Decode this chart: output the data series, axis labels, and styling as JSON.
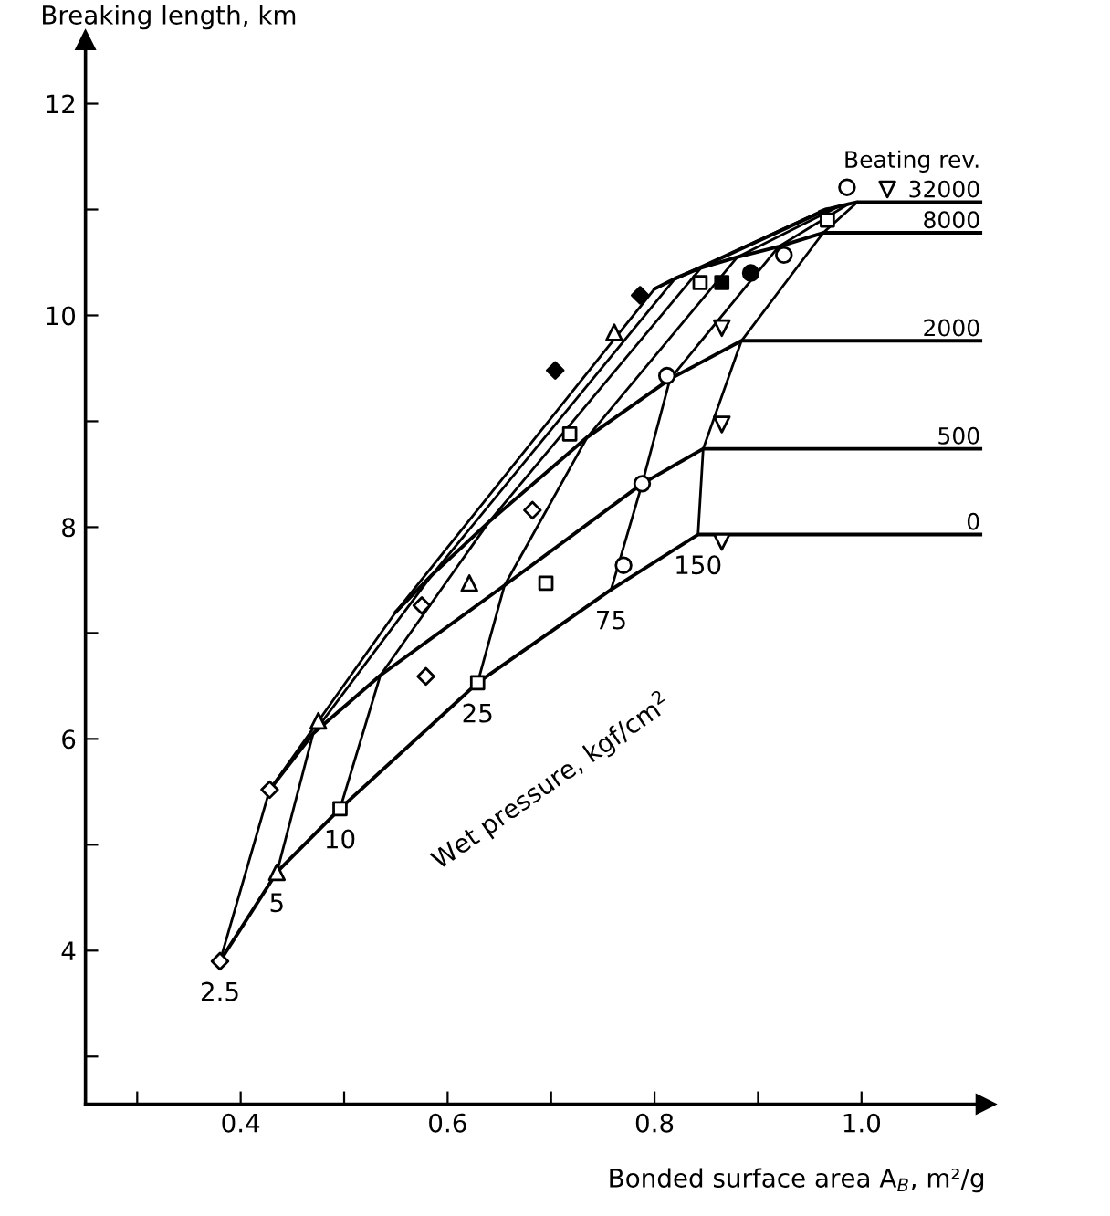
{
  "chart_data": {
    "type": "line",
    "xlabel": "Bonded surface area A$_{B}$, m²/g",
    "ylabel": "Breaking length, km",
    "legend_title": "Beating rev.",
    "xlim": [
      0.25,
      1.12
    ],
    "ylim": [
      2.55,
      12.6
    ],
    "xticks": [
      {
        "value": 0.3,
        "label": null
      },
      0.4,
      {
        "value": 0.5,
        "label": null
      },
      0.6,
      {
        "value": 0.7,
        "label": null
      },
      0.8,
      {
        "value": 0.9,
        "label": null
      },
      {
        "value": 1.0,
        "label": "1.0"
      }
    ],
    "yticks": [
      {
        "value": 3,
        "label": null
      },
      4,
      {
        "value": 5,
        "label": null
      },
      6,
      {
        "value": 7,
        "label": null
      },
      8,
      {
        "value": 9,
        "label": null
      },
      10,
      {
        "value": 11,
        "label": null
      },
      12
    ],
    "grid": false,
    "legend": false,
    "series": [
      {
        "name": "0",
        "color": "#000000",
        "marker": "none",
        "x": [
          0.38,
          0.435,
          0.496,
          0.629,
          0.758,
          0.842,
          1.115
        ],
        "values": [
          3.9,
          4.74,
          5.34,
          6.53,
          7.41,
          7.93,
          7.93
        ]
      },
      {
        "name": "500",
        "color": "#000000",
        "marker": "none",
        "x": [
          0.428,
          0.47,
          0.535,
          0.655,
          0.788,
          0.847,
          1.115
        ],
        "values": [
          5.52,
          6.05,
          6.6,
          7.45,
          8.41,
          8.74,
          8.74
        ]
      },
      {
        "name": "2000",
        "color": "#000000",
        "marker": "none",
        "x": [
          0.55,
          0.585,
          0.64,
          0.735,
          0.815,
          0.884,
          1.115
        ],
        "values": [
          7.2,
          7.55,
          8.05,
          8.85,
          9.4,
          9.76,
          9.76
        ]
      },
      {
        "name": "8000",
        "color": "#000000",
        "marker": "none",
        "x": [
          0.8,
          0.82,
          0.845,
          0.88,
          0.92,
          0.963,
          1.115
        ],
        "values": [
          10.25,
          10.35,
          10.45,
          10.55,
          10.65,
          10.78,
          10.78
        ]
      },
      {
        "name": "32000",
        "color": "#000000",
        "marker": "none",
        "x": [
          0.96,
          0.965,
          0.97,
          0.978,
          0.987,
          0.996,
          1.115
        ],
        "values": [
          10.98,
          11.0,
          11.01,
          11.03,
          11.05,
          11.07,
          11.07
        ]
      },
      {
        "type": "line",
        "color": "#000000",
        "marker": "none",
        "x": [
          0.38,
          0.428,
          0.55,
          0.8,
          0.96
        ],
        "values": [
          3.9,
          5.52,
          7.2,
          10.25,
          10.98
        ]
      },
      {
        "type": "line",
        "color": "#000000",
        "marker": "none",
        "x": [
          0.435,
          0.47,
          0.585,
          0.82,
          0.965
        ],
        "values": [
          4.74,
          6.05,
          7.55,
          10.35,
          11.0
        ]
      },
      {
        "type": "line",
        "color": "#000000",
        "marker": "none",
        "x": [
          0.496,
          0.535,
          0.64,
          0.845,
          0.97
        ],
        "values": [
          5.34,
          6.6,
          8.05,
          10.45,
          11.01
        ]
      },
      {
        "type": "line",
        "color": "#000000",
        "marker": "none",
        "x": [
          0.629,
          0.655,
          0.735,
          0.88,
          0.978
        ],
        "values": [
          6.53,
          7.45,
          8.85,
          10.55,
          11.03
        ]
      },
      {
        "type": "line",
        "color": "#000000",
        "marker": "none",
        "x": [
          0.758,
          0.788,
          0.815,
          0.92,
          0.987
        ],
        "values": [
          7.41,
          8.41,
          9.4,
          10.65,
          11.05
        ]
      },
      {
        "type": "line",
        "color": "#000000",
        "marker": "none",
        "x": [
          0.842,
          0.847,
          0.884,
          0.963,
          0.996
        ],
        "values": [
          7.93,
          8.74,
          9.76,
          10.78,
          11.07
        ]
      },
      {
        "type": "scatter",
        "color": "#ffffff",
        "marker": "diamond",
        "x": [
          0.38,
          0.428,
          0.579,
          0.575,
          0.682
        ],
        "values": [
          3.9,
          5.52,
          6.59,
          7.26,
          8.16
        ]
      },
      {
        "type": "scatter",
        "color": "#000000",
        "marker": "diamond",
        "x": [
          0.704,
          0.786
        ],
        "values": [
          9.48,
          10.19
        ]
      },
      {
        "type": "scatter",
        "color": "#ffffff",
        "marker": "triangle",
        "x": [
          0.435,
          0.475,
          0.621,
          0.761
        ],
        "values": [
          4.74,
          6.17,
          7.47,
          9.84
        ]
      },
      {
        "type": "scatter",
        "color": "#ffffff",
        "marker": "square",
        "x": [
          0.496,
          0.629,
          0.695,
          0.718,
          0.844,
          0.967
        ],
        "values": [
          5.34,
          6.53,
          7.47,
          8.88,
          10.31,
          10.9
        ]
      },
      {
        "type": "scatter",
        "color": "#000000",
        "marker": "square",
        "x": [
          0.865
        ],
        "values": [
          10.31
        ]
      },
      {
        "type": "scatter",
        "color": "#ffffff",
        "marker": "circle",
        "x": [
          0.77,
          0.788,
          0.812,
          0.925,
          0.986
        ],
        "values": [
          7.64,
          8.41,
          9.43,
          10.57,
          11.21
        ]
      },
      {
        "type": "scatter",
        "color": "#000000",
        "marker": "circle",
        "x": [
          0.893
        ],
        "values": [
          10.4
        ]
      },
      {
        "type": "scatter",
        "color": "#ffffff",
        "marker": "triangle_down",
        "x": [
          0.865,
          0.865,
          0.865,
          1.025
        ],
        "values": [
          7.86,
          8.97,
          9.88,
          11.19
        ]
      }
    ],
    "annotations": [
      {
        "text": "2.5",
        "x": 0.38,
        "y": 3.9
      },
      {
        "text": "5",
        "x": 0.435,
        "y": 4.74
      },
      {
        "text": "10",
        "x": 0.496,
        "y": 5.34
      },
      {
        "text": "25",
        "x": 0.629,
        "y": 6.53
      },
      {
        "text": "75",
        "x": 0.758,
        "y": 7.41
      },
      {
        "text": "150",
        "x": 0.842,
        "y": 7.93
      },
      "Wet pressure, kgf/cm$^{2}$"
    ]
  }
}
